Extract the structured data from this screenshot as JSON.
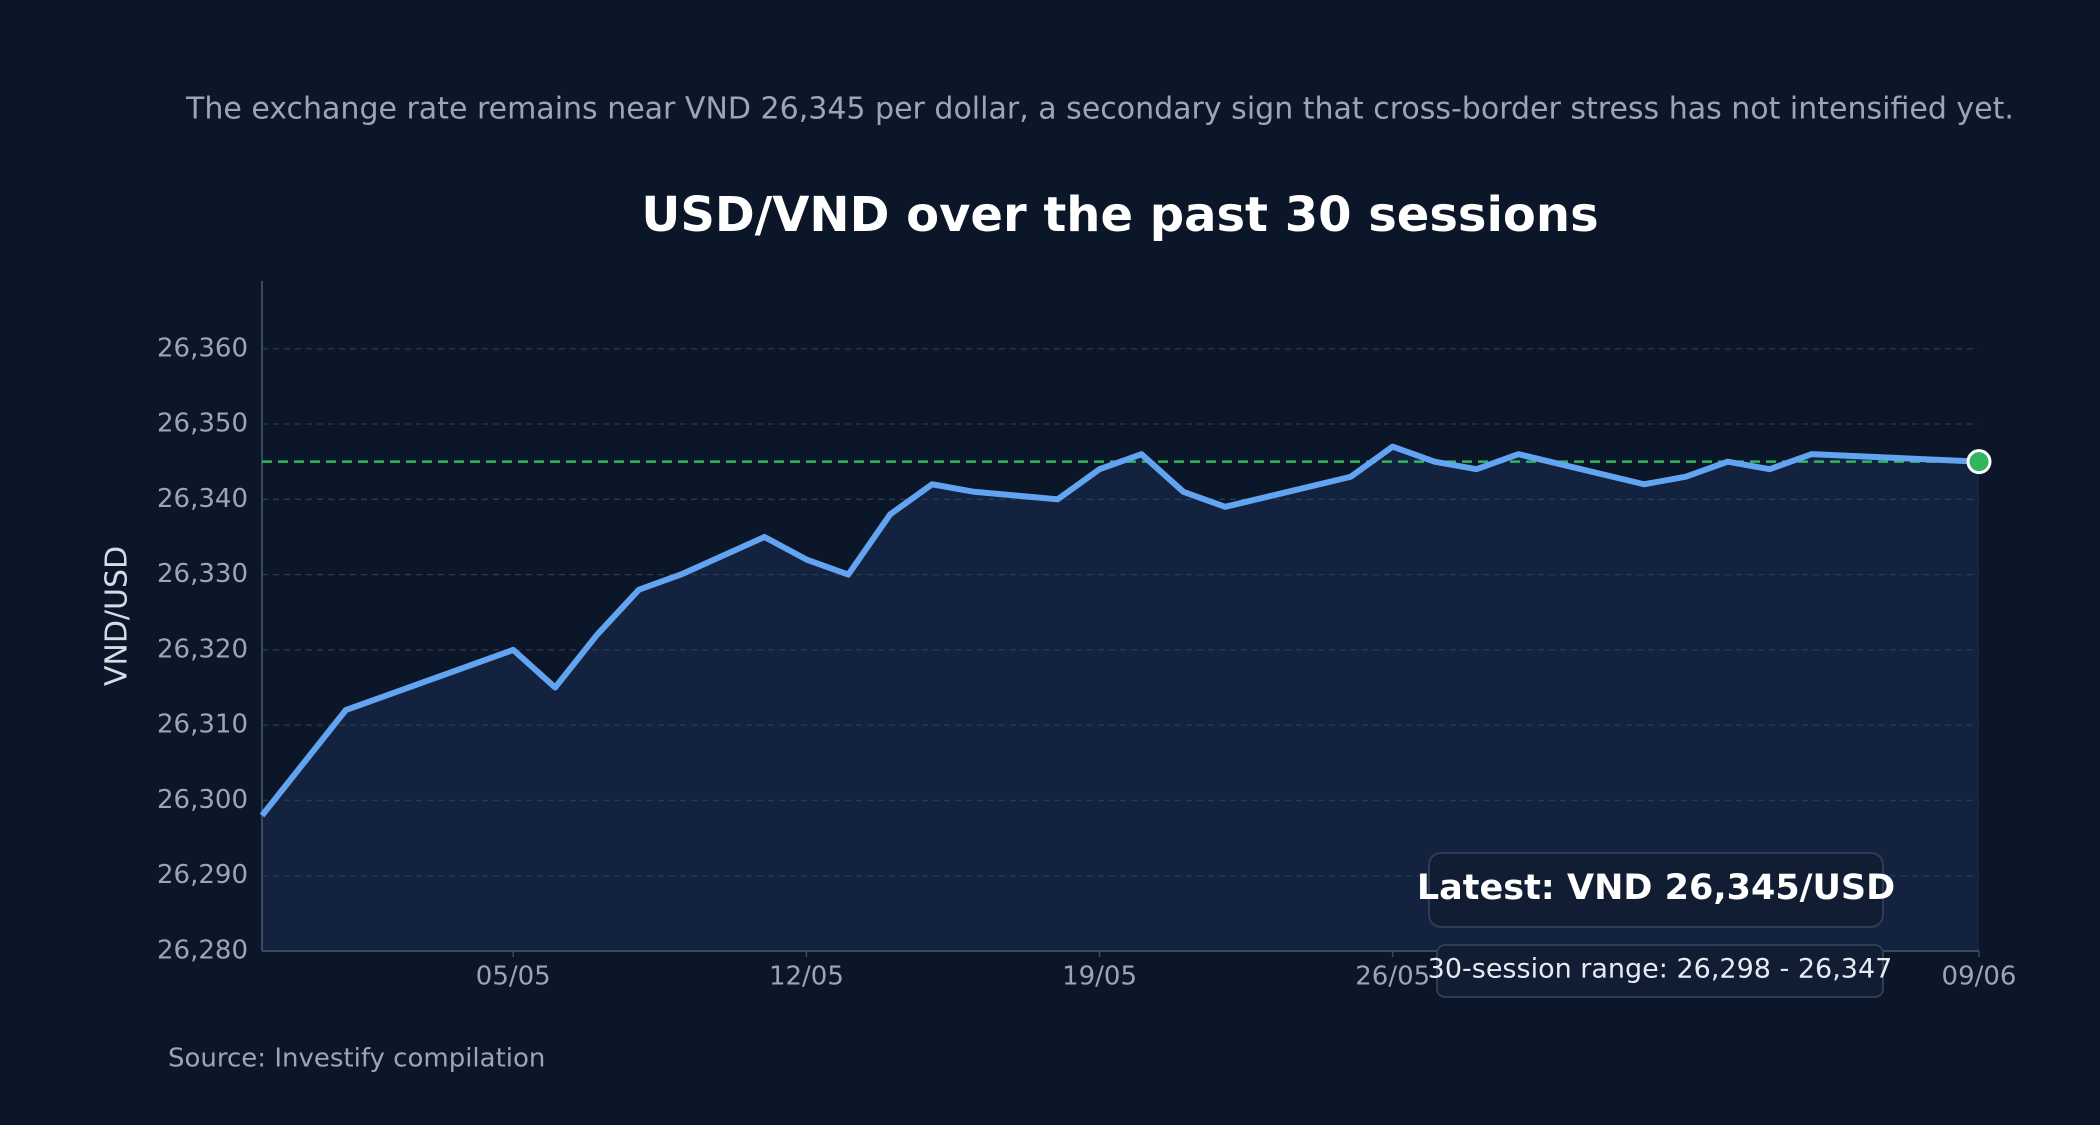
{
  "chart_data": {
    "type": "line",
    "subtitle": "The exchange rate remains near VND 26,345 per dollar, a secondary sign that cross-border stress has not intensified yet.",
    "title": "USD/VND over the past 30 sessions",
    "ylabel": "VND/USD",
    "source": "Source: Investify compilation",
    "x": [
      "29/04",
      "01/05",
      "02/05",
      "05/05",
      "06/05",
      "07/05",
      "08/05",
      "09/05",
      "11/05",
      "12/05",
      "13/05",
      "14/05",
      "15/05",
      "16/05",
      "18/05",
      "19/05",
      "20/05",
      "21/05",
      "22/05",
      "25/05",
      "26/05",
      "27/05",
      "28/05",
      "29/05",
      "01/06",
      "02/06",
      "03/06",
      "04/06",
      "05/06",
      "09/06"
    ],
    "series": [
      {
        "color": "#62a4f2",
        "values": [
          26298,
          26312,
          26314,
          26320,
          26315,
          26322,
          26328,
          26330,
          26335,
          26332,
          26330,
          26338,
          26342,
          26341,
          26340,
          26344,
          26346,
          26341,
          26339,
          26343,
          26347,
          26345,
          26344,
          26346,
          26342,
          26343,
          26345,
          26344,
          26346,
          26345
        ]
      }
    ],
    "xlim": [
      "29/04",
      "09/06"
    ],
    "xticks": [
      "05/05",
      "12/05",
      "19/05",
      "26/05",
      "09/06"
    ],
    "ylim": [
      26280,
      26369
    ],
    "yticks": [
      {
        "value": 26280,
        "label": "26,280"
      },
      {
        "value": 26290,
        "label": "26,290"
      },
      {
        "value": 26300,
        "label": "26,300"
      },
      {
        "value": 26310,
        "label": "26,310"
      },
      {
        "value": 26320,
        "label": "26,320"
      },
      {
        "value": 26330,
        "label": "26,330"
      },
      {
        "value": 26340,
        "label": "26,340"
      },
      {
        "value": 26350,
        "label": "26,350"
      },
      {
        "value": 26360,
        "label": "26,360"
      }
    ],
    "grid": true,
    "reference_line": {
      "value": 26345,
      "color": "#2fb65e"
    },
    "annotations": [
      "Latest: VND 26,345/USD",
      "30-session range: 26,298 - 26,347"
    ]
  }
}
